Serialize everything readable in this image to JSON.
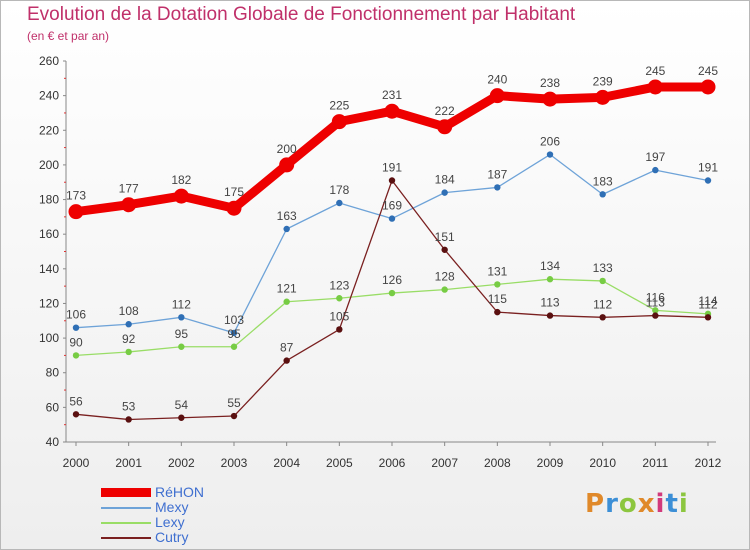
{
  "title": "Evolution de la Dotation Globale de Fonctionnement par Habitant",
  "subtitle": "(en € et par an)",
  "logo": {
    "text": "Proxiti",
    "letter_colors": [
      "#e0892a",
      "#3c8fd6",
      "#8cc63f",
      "#e0892a",
      "#d23a7c",
      "#3c8fd6",
      "#8cc63f"
    ]
  },
  "chart_data": {
    "type": "line",
    "title": "Evolution de la Dotation Globale de Fonctionnement par Habitant",
    "subtitle": "(en € et par an)",
    "xlabel": "",
    "ylabel": "",
    "x": [
      "2000",
      "2001",
      "2002",
      "2003",
      "2004",
      "2005",
      "2006",
      "2007",
      "2008",
      "2009",
      "2010",
      "2011",
      "2012"
    ],
    "ylim": [
      40,
      260
    ],
    "yticks": [
      40,
      60,
      80,
      100,
      120,
      140,
      160,
      180,
      200,
      220,
      240,
      260
    ],
    "grid": false,
    "legend_position": "bottom-left",
    "series": [
      {
        "name": "RéHON",
        "values": [
          173,
          177,
          182,
          175,
          200,
          225,
          231,
          222,
          240,
          238,
          239,
          245,
          245
        ],
        "color": "#ee0000",
        "marker_color": "#ee0000",
        "emphasis": true
      },
      {
        "name": "Mexy",
        "values": [
          106,
          108,
          112,
          103,
          163,
          178,
          169,
          184,
          187,
          206,
          183,
          197,
          191
        ],
        "color": "#6ea3d8",
        "marker_color": "#2f6fb5",
        "emphasis": false
      },
      {
        "name": "Lexy",
        "values": [
          90,
          92,
          95,
          95,
          121,
          123,
          126,
          128,
          131,
          134,
          133,
          116,
          114
        ],
        "color": "#99dd66",
        "marker_color": "#77cc44",
        "emphasis": false
      },
      {
        "name": "Cutry",
        "values": [
          56,
          53,
          54,
          55,
          87,
          105,
          191,
          151,
          115,
          113,
          112,
          113,
          112
        ],
        "color": "#7a2020",
        "marker_color": "#5a1010",
        "emphasis": false
      }
    ]
  }
}
